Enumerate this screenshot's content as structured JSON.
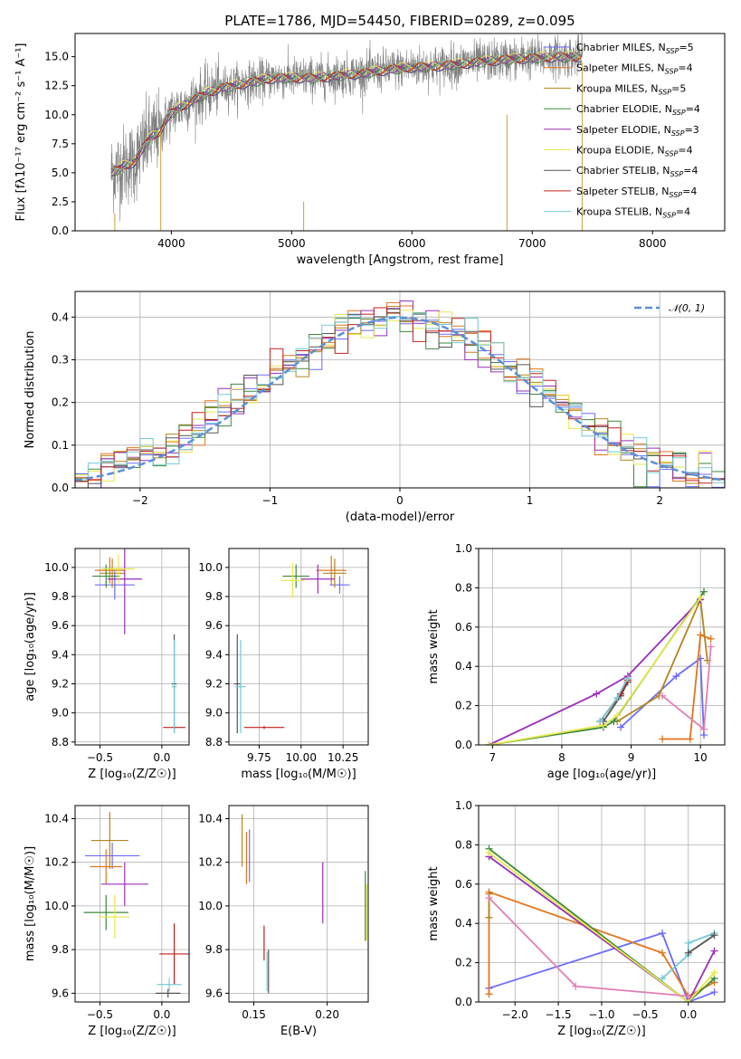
{
  "figure_title": "PLATE=1786, MJD=54450, FIBERID=0289, z=0.095",
  "colors": {
    "Chabrier MILES": "#6b6bff",
    "Salpeter MILES": "#e1761c",
    "Kroupa MILES": "#b5851c",
    "Chabrier ELODIE": "#3a8a3a",
    "Salpeter ELODIE": "#9a2fb8",
    "Kroupa ELODIE": "#e8e84a",
    "Chabrier STELIB": "#555555",
    "Salpeter STELIB": "#c0201a",
    "Kroupa STELIB": "#72c9d6",
    "model_obs": "#808080",
    "gauss": "#5b8fd9"
  },
  "chart_data": [
    {
      "id": "spectrum",
      "type": "line",
      "xlabel": "wavelength [Angstrom, rest frame]",
      "ylabel": "Flux [fλ10⁻¹⁷ erg cm⁻² s⁻¹ A⁻¹]",
      "xlim": [
        3200,
        8600
      ],
      "ylim": [
        0,
        17
      ],
      "xticks": [
        4000,
        5000,
        6000,
        7000,
        8000
      ],
      "yticks": [
        0.0,
        2.5,
        5.0,
        7.5,
        10.0,
        12.5,
        15.0
      ],
      "grid": false,
      "legend_position": "top-right",
      "legend": [
        {
          "name": "Chabrier MILES",
          "nssp": "=5"
        },
        {
          "name": "Salpeter MILES",
          "nssp": "=4"
        },
        {
          "name": "Kroupa MILES",
          "nssp": "=5"
        },
        {
          "name": "Chabrier ELODIE",
          "nssp": "=4"
        },
        {
          "name": "Salpeter ELODIE",
          "nssp": "=3"
        },
        {
          "name": "Kroupa ELODIE",
          "nssp": "=4"
        },
        {
          "name": "Chabrier STELIB",
          "nssp": "=4"
        },
        {
          "name": "Salpeter STELIB",
          "nssp": "=4"
        },
        {
          "name": "Kroupa STELIB",
          "nssp": "=4"
        }
      ],
      "model_x": [
        3500,
        3600,
        3700,
        3800,
        3900,
        4000,
        4100,
        4200,
        4300,
        4400,
        4500,
        4600,
        4700,
        4800,
        4900,
        5000,
        5200,
        5400,
        5600,
        5800,
        6000,
        6200,
        6400,
        6600,
        6800,
        7000,
        7200,
        7400
      ],
      "model_y": [
        5.0,
        5.6,
        6.0,
        7.8,
        8.6,
        10.2,
        10.8,
        11.4,
        11.9,
        12.3,
        12.5,
        12.7,
        12.9,
        13.1,
        13.2,
        13.2,
        13.2,
        13.4,
        13.6,
        13.9,
        14.1,
        14.2,
        14.4,
        14.6,
        14.8,
        14.9,
        15.0,
        15.0
      ]
    },
    {
      "id": "residuals",
      "type": "line",
      "xlabel": "(data-model)/error",
      "ylabel": "Normed distribution",
      "xlim": [
        -2.5,
        2.5
      ],
      "ylim": [
        0,
        0.46
      ],
      "xticks": [
        -2,
        -1,
        0,
        1,
        2
      ],
      "yticks": [
        0.0,
        0.1,
        0.2,
        0.3,
        0.4
      ],
      "grid": true,
      "legend_position": "top-right",
      "gauss_label": "𝒩(0, 1)",
      "hist_bin_width": 0.1
    },
    {
      "id": "age-vs-Z",
      "type": "scatter",
      "xlabel": "Z [log₁₀(Z/Z☉)]",
      "ylabel": "age  [log₁₀(age/yr)]",
      "xlim": [
        -0.7,
        0.22
      ],
      "ylim": [
        8.78,
        10.13
      ],
      "xticks": [
        -0.5,
        0.0
      ],
      "yticks": [
        8.8,
        9.0,
        9.2,
        9.4,
        9.6,
        9.8,
        10.0
      ],
      "grid": true,
      "errorbars": [
        {
          "s": "Chabrier MILES",
          "x": -0.38,
          "y": 9.88,
          "xe": 0.16,
          "ye": 0.1
        },
        {
          "s": "Salpeter MILES",
          "x": -0.42,
          "y": 9.98,
          "xe": 0.12,
          "ye": 0.09
        },
        {
          "s": "Kroupa MILES",
          "x": -0.4,
          "y": 9.96,
          "xe": 0.1,
          "ye": 0.1
        },
        {
          "s": "Chabrier ELODIE",
          "x": -0.45,
          "y": 9.94,
          "xe": 0.11,
          "ye": 0.08
        },
        {
          "s": "Salpeter ELODIE",
          "x": -0.3,
          "y": 9.92,
          "xe": 0.14,
          "ye": 0.38
        },
        {
          "s": "Kroupa ELODIE",
          "x": -0.35,
          "y": 9.99,
          "xe": 0.13,
          "ye": 0.1
        },
        {
          "s": "Chabrier STELIB",
          "x": 0.1,
          "y": 9.2,
          "xe": 0.02,
          "ye": 0.34
        },
        {
          "s": "Salpeter STELIB",
          "x": 0.1,
          "y": 8.9,
          "xe": 0.09,
          "ye": 0.01
        },
        {
          "s": "Kroupa STELIB",
          "x": 0.1,
          "y": 9.18,
          "xe": 0.02,
          "ye": 0.32
        }
      ]
    },
    {
      "id": "age-vs-mass",
      "type": "scatter",
      "xlabel": "mass [log₁₀(M/M☉)]",
      "ylabel": "",
      "xlim": [
        9.57,
        10.4
      ],
      "ylim": [
        8.78,
        10.13
      ],
      "xticks": [
        9.75,
        10.0,
        10.25
      ],
      "yticks": [
        8.8,
        9.0,
        9.2,
        9.4,
        9.6,
        9.8,
        10.0
      ],
      "grid": true,
      "errorbars": [
        {
          "s": "Chabrier MILES",
          "x": 10.23,
          "y": 9.88,
          "xe": 0.06,
          "ye": 0.06
        },
        {
          "s": "Salpeter MILES",
          "x": 10.18,
          "y": 9.98,
          "xe": 0.09,
          "ye": 0.1
        },
        {
          "s": "Kroupa MILES",
          "x": 10.2,
          "y": 9.96,
          "xe": 0.07,
          "ye": 0.1
        },
        {
          "s": "Chabrier ELODIE",
          "x": 9.97,
          "y": 9.94,
          "xe": 0.08,
          "ye": 0.08
        },
        {
          "s": "Salpeter ELODIE",
          "x": 10.1,
          "y": 9.92,
          "xe": 0.1,
          "ye": 0.1
        },
        {
          "s": "Kroupa ELODIE",
          "x": 9.95,
          "y": 9.91,
          "xe": 0.07,
          "ye": 0.12
        },
        {
          "s": "Chabrier STELIB",
          "x": 9.62,
          "y": 9.2,
          "xe": 0.02,
          "ye": 0.34
        },
        {
          "s": "Salpeter STELIB",
          "x": 9.78,
          "y": 8.9,
          "xe": 0.12,
          "ye": 0.01
        },
        {
          "s": "Kroupa STELIB",
          "x": 9.64,
          "y": 9.18,
          "xe": 0.03,
          "ye": 0.32
        }
      ]
    },
    {
      "id": "weight-vs-age",
      "type": "line",
      "xlabel": "age  [log₁₀(age/yr)]",
      "ylabel": "mass weight",
      "xlim": [
        6.8,
        10.35
      ],
      "ylim": [
        0,
        1.0
      ],
      "xticks": [
        7,
        8,
        9,
        10
      ],
      "yticks": [
        0.0,
        0.2,
        0.4,
        0.6,
        0.8,
        1.0
      ],
      "grid": true,
      "series": [
        {
          "s": "Chabrier MILES",
          "x": [
            8.85,
            9.65,
            10.0,
            10.05
          ],
          "y": [
            0.09,
            0.35,
            0.44,
            0.05
          ]
        },
        {
          "s": "Salpeter MILES",
          "x": [
            9.45,
            9.85,
            10.0,
            10.15
          ],
          "y": [
            0.03,
            0.03,
            0.56,
            0.54
          ]
        },
        {
          "s": "Kroupa MILES",
          "x": [
            8.8,
            9.4,
            10.0,
            10.1
          ],
          "y": [
            0.12,
            0.25,
            0.74,
            0.43
          ]
        },
        {
          "s": "Chabrier ELODIE",
          "x": [
            6.95,
            8.6,
            8.75,
            10.05
          ],
          "y": [
            0.0,
            0.09,
            0.12,
            0.78
          ]
        },
        {
          "s": "Salpeter ELODIE",
          "x": [
            6.95,
            8.5,
            8.95,
            10.0
          ],
          "y": [
            0.0,
            0.26,
            0.35,
            0.74
          ]
        },
        {
          "s": "Kroupa ELODIE",
          "x": [
            6.95,
            8.6,
            8.8,
            10.0
          ],
          "y": [
            0.0,
            0.1,
            0.15,
            0.75
          ]
        },
        {
          "s": "Chabrier STELIB",
          "x": [
            8.6,
            8.85,
            8.95
          ],
          "y": [
            0.12,
            0.25,
            0.32
          ]
        },
        {
          "s": "Salpeter STELIB",
          "x": [
            8.55,
            8.85,
            8.95
          ],
          "y": [
            0.12,
            0.26,
            0.33
          ]
        },
        {
          "s": "Kroupa STELIB",
          "x": [
            8.55,
            8.8,
            8.95
          ],
          "y": [
            0.12,
            0.24,
            0.34
          ]
        },
        {
          "s": "pink",
          "x": [
            9.45,
            10.05,
            10.15
          ],
          "y": [
            0.25,
            0.08,
            0.5
          ]
        }
      ]
    },
    {
      "id": "mass-vs-Z",
      "type": "scatter",
      "xlabel": "Z [log₁₀(Z/Z☉)]",
      "ylabel": "mass [log₁₀(M/M☉)]",
      "xlim": [
        -0.7,
        0.22
      ],
      "ylim": [
        9.56,
        10.46
      ],
      "xticks": [
        -0.5,
        0.0
      ],
      "yticks": [
        9.6,
        9.8,
        10.0,
        10.2,
        10.4
      ],
      "grid": true,
      "errorbars": [
        {
          "s": "Chabrier MILES",
          "x": -0.4,
          "y": 10.23,
          "xe": 0.22,
          "ye": 0.06
        },
        {
          "s": "Salpeter MILES",
          "x": -0.45,
          "y": 10.18,
          "xe": 0.13,
          "ye": 0.08
        },
        {
          "s": "Kroupa MILES",
          "x": -0.42,
          "y": 10.3,
          "xe": 0.15,
          "ye": 0.13
        },
        {
          "s": "Chabrier ELODIE",
          "x": -0.45,
          "y": 9.97,
          "xe": 0.18,
          "ye": 0.08
        },
        {
          "s": "Salpeter ELODIE",
          "x": -0.3,
          "y": 10.1,
          "xe": 0.19,
          "ye": 0.1
        },
        {
          "s": "Kroupa ELODIE",
          "x": -0.38,
          "y": 9.95,
          "xe": 0.12,
          "ye": 0.1
        },
        {
          "s": "Chabrier STELIB",
          "x": 0.05,
          "y": 9.6,
          "xe": 0.1,
          "ye": 0.02
        },
        {
          "s": "Salpeter STELIB",
          "x": 0.1,
          "y": 9.78,
          "xe": 0.12,
          "ye": 0.14
        },
        {
          "s": "Kroupa STELIB",
          "x": 0.06,
          "y": 9.64,
          "xe": 0.1,
          "ye": 0.03
        }
      ]
    },
    {
      "id": "mass-vs-ebv",
      "type": "scatter",
      "xlabel": "E(B-V)",
      "ylabel": "",
      "xlim": [
        0.133,
        0.228
      ],
      "ylim": [
        9.56,
        10.46
      ],
      "xticks": [
        0.15,
        0.2
      ],
      "yticks": [
        9.6,
        9.8,
        10.0,
        10.2,
        10.4
      ],
      "grid": true,
      "errorbars": [
        {
          "s": "Chabrier MILES",
          "x": 0.147,
          "y": 10.23,
          "xe": 0.0,
          "ye": 0.12
        },
        {
          "s": "Salpeter MILES",
          "x": 0.145,
          "y": 10.22,
          "xe": 0.0,
          "ye": 0.12
        },
        {
          "s": "Kroupa MILES",
          "x": 0.142,
          "y": 10.3,
          "xe": 0.0,
          "ye": 0.12
        },
        {
          "s": "Chabrier ELODIE",
          "x": 0.226,
          "y": 10.0,
          "xe": 0.0,
          "ye": 0.16
        },
        {
          "s": "Salpeter ELODIE",
          "x": 0.197,
          "y": 10.06,
          "xe": 0.0,
          "ye": 0.14
        },
        {
          "s": "Kroupa ELODIE",
          "x": 0.227,
          "y": 9.97,
          "xe": 0.0,
          "ye": 0.13
        },
        {
          "s": "Chabrier STELIB",
          "x": 0.16,
          "y": 9.7,
          "xe": 0.0,
          "ye": 0.1
        },
        {
          "s": "Salpeter STELIB",
          "x": 0.157,
          "y": 9.83,
          "xe": 0.0,
          "ye": 0.08
        },
        {
          "s": "Kroupa STELIB",
          "x": 0.159,
          "y": 9.7,
          "xe": 0.0,
          "ye": 0.09
        }
      ]
    },
    {
      "id": "weight-vs-Z",
      "type": "line",
      "xlabel": "Z [log₁₀(Z/Z☉)]",
      "ylabel": "mass weight",
      "xlim": [
        -2.42,
        0.42
      ],
      "ylim": [
        0,
        1.0
      ],
      "xticks": [
        -2.0,
        -1.5,
        -1.0,
        -0.5,
        0.0
      ],
      "yticks": [
        0.0,
        0.2,
        0.4,
        0.6,
        0.8,
        1.0
      ],
      "grid": true,
      "series": [
        {
          "s": "Chabrier MILES",
          "x": [
            -2.3,
            -0.3,
            0.0,
            0.3
          ],
          "y": [
            0.07,
            0.35,
            0.0,
            0.05
          ]
        },
        {
          "s": "Salpeter MILES",
          "x": [
            -2.3,
            -2.3,
            -0.3,
            0.0,
            0.3
          ],
          "y": [
            0.04,
            0.56,
            0.25,
            0.03,
            0.1
          ]
        },
        {
          "s": "Kroupa MILES",
          "x": [
            -2.3,
            -2.3
          ],
          "y": [
            0.43,
            0.55
          ]
        },
        {
          "s": "Chabrier ELODIE",
          "x": [
            -2.3,
            0.0,
            0.3
          ],
          "y": [
            0.78,
            0.0,
            0.12
          ]
        },
        {
          "s": "Salpeter ELODIE",
          "x": [
            -2.3,
            0.0,
            0.3
          ],
          "y": [
            0.74,
            0.0,
            0.26
          ]
        },
        {
          "s": "Kroupa ELODIE",
          "x": [
            -2.3,
            0.0,
            0.3
          ],
          "y": [
            0.76,
            0.0,
            0.15
          ]
        },
        {
          "s": "Kroupa STELIB",
          "x": [
            -0.3,
            0.0,
            0.0,
            0.3
          ],
          "y": [
            0.12,
            0.24,
            0.3,
            0.35
          ]
        },
        {
          "s": "Chabrier STELIB",
          "x": [
            0.0,
            0.3
          ],
          "y": [
            0.25,
            0.34
          ]
        },
        {
          "s": "pink",
          "x": [
            -2.3,
            -1.3,
            0.0
          ],
          "y": [
            0.53,
            0.08,
            0.03
          ]
        }
      ]
    }
  ]
}
